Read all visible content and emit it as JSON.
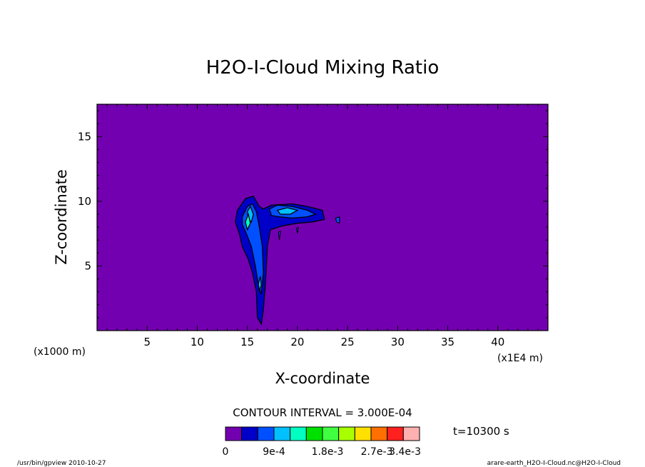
{
  "chart_data": {
    "type": "contour",
    "title": "H2O-I-Cloud Mixing Ratio",
    "xlabel": "X-coordinate",
    "ylabel": "Z-coordinate",
    "x_unit_label": "(x1E4 m)",
    "y_unit_label": "(x1000 m)",
    "xlim": [
      0,
      45
    ],
    "ylim": [
      0,
      17.5
    ],
    "x_ticks": [
      5,
      10,
      15,
      20,
      25,
      30,
      35,
      40
    ],
    "y_ticks": [
      5,
      10,
      15
    ],
    "contour_interval_text": "CONTOUR INTERVAL = 3.000E-04",
    "time_text": "t=10300 s",
    "colorbar": {
      "colors": [
        "#7300b0",
        "#0000c8",
        "#0050ff",
        "#00c0ff",
        "#00ffc0",
        "#00e000",
        "#40ff40",
        "#a8ff00",
        "#ffe000",
        "#ff7000",
        "#ff2020",
        "#ffb0b0"
      ],
      "labels": [
        "0",
        "9e-4",
        "1.8e-3",
        "2.7e-3",
        "3.4e-3"
      ]
    },
    "background_color": "#7300b0",
    "cloud_regions": [
      {
        "level": "low",
        "color": "#0000c8",
        "points": [
          [
            14.0,
            9.3
          ],
          [
            14.8,
            10.2
          ],
          [
            15.6,
            10.4
          ],
          [
            16.2,
            9.6
          ],
          [
            16.6,
            9.4
          ],
          [
            17.4,
            9.7
          ],
          [
            19.5,
            9.8
          ],
          [
            21.0,
            9.6
          ],
          [
            22.5,
            9.3
          ],
          [
            22.7,
            8.6
          ],
          [
            21.5,
            8.4
          ],
          [
            20.0,
            8.3
          ],
          [
            18.5,
            8.1
          ],
          [
            17.3,
            7.8
          ],
          [
            17.0,
            6.5
          ],
          [
            16.9,
            5.0
          ],
          [
            16.8,
            3.5
          ],
          [
            16.6,
            1.6
          ],
          [
            16.4,
            0.5
          ],
          [
            16.0,
            1.0
          ],
          [
            15.9,
            3.0
          ],
          [
            15.5,
            4.5
          ],
          [
            15.1,
            5.5
          ],
          [
            14.5,
            6.5
          ],
          [
            14.2,
            7.5
          ],
          [
            13.8,
            8.4
          ]
        ]
      },
      {
        "level": "mid",
        "color": "#0050ff",
        "points": [
          [
            14.5,
            8.8
          ],
          [
            15.0,
            9.6
          ],
          [
            15.5,
            9.8
          ],
          [
            15.9,
            9.2
          ],
          [
            16.2,
            8.0
          ],
          [
            16.5,
            6.5
          ],
          [
            16.6,
            4.5
          ],
          [
            16.4,
            2.8
          ],
          [
            16.1,
            3.5
          ],
          [
            15.8,
            5.0
          ],
          [
            15.4,
            6.5
          ],
          [
            14.9,
            7.5
          ],
          [
            14.5,
            8.2
          ]
        ]
      },
      {
        "level": "mid",
        "color": "#0050ff",
        "points": [
          [
            17.2,
            9.4
          ],
          [
            18.0,
            9.7
          ],
          [
            19.5,
            9.6
          ],
          [
            21.0,
            9.3
          ],
          [
            21.8,
            9.0
          ],
          [
            21.0,
            8.8
          ],
          [
            19.5,
            8.7
          ],
          [
            18.2,
            8.8
          ],
          [
            17.4,
            8.9
          ]
        ]
      },
      {
        "level": "mid-high",
        "color": "#00c0ff",
        "points": [
          [
            18.0,
            9.3
          ],
          [
            19.0,
            9.5
          ],
          [
            20.0,
            9.3
          ],
          [
            19.3,
            9.0
          ],
          [
            18.3,
            9.0
          ]
        ]
      },
      {
        "level": "mid-high",
        "color": "#00c0ff",
        "points": [
          [
            15.0,
            9.2
          ],
          [
            15.3,
            9.6
          ],
          [
            15.6,
            9.0
          ],
          [
            15.4,
            8.4
          ],
          [
            15.1,
            8.6
          ]
        ]
      },
      {
        "level": "mid-high",
        "color": "#00c0ff",
        "points": [
          [
            16.1,
            3.6
          ],
          [
            16.3,
            4.2
          ],
          [
            16.4,
            3.5
          ],
          [
            16.2,
            3.1
          ]
        ]
      },
      {
        "level": "high",
        "color": "#00ffc0",
        "points": [
          [
            14.8,
            8.4
          ],
          [
            15.1,
            9.0
          ],
          [
            15.3,
            8.3
          ],
          [
            15.0,
            7.8
          ]
        ]
      }
    ],
    "cloud_specks": [
      {
        "color": "#0050ff",
        "points": [
          [
            23.8,
            8.7
          ],
          [
            24.2,
            8.8
          ],
          [
            24.2,
            8.3
          ],
          [
            23.9,
            8.4
          ]
        ]
      },
      {
        "color": "#0050ff",
        "points": [
          [
            18.1,
            7.6
          ],
          [
            18.3,
            7.7
          ],
          [
            18.2,
            7.0
          ]
        ]
      },
      {
        "color": "#0050ff",
        "points": [
          [
            19.9,
            7.9
          ],
          [
            20.1,
            8.0
          ],
          [
            20.0,
            7.5
          ]
        ]
      }
    ]
  },
  "footer": {
    "left": "/usr/bin/gpview  2010-10-27",
    "right": "arare-earth_H2O-I-Cloud.nc@H2O-I-Cloud"
  }
}
